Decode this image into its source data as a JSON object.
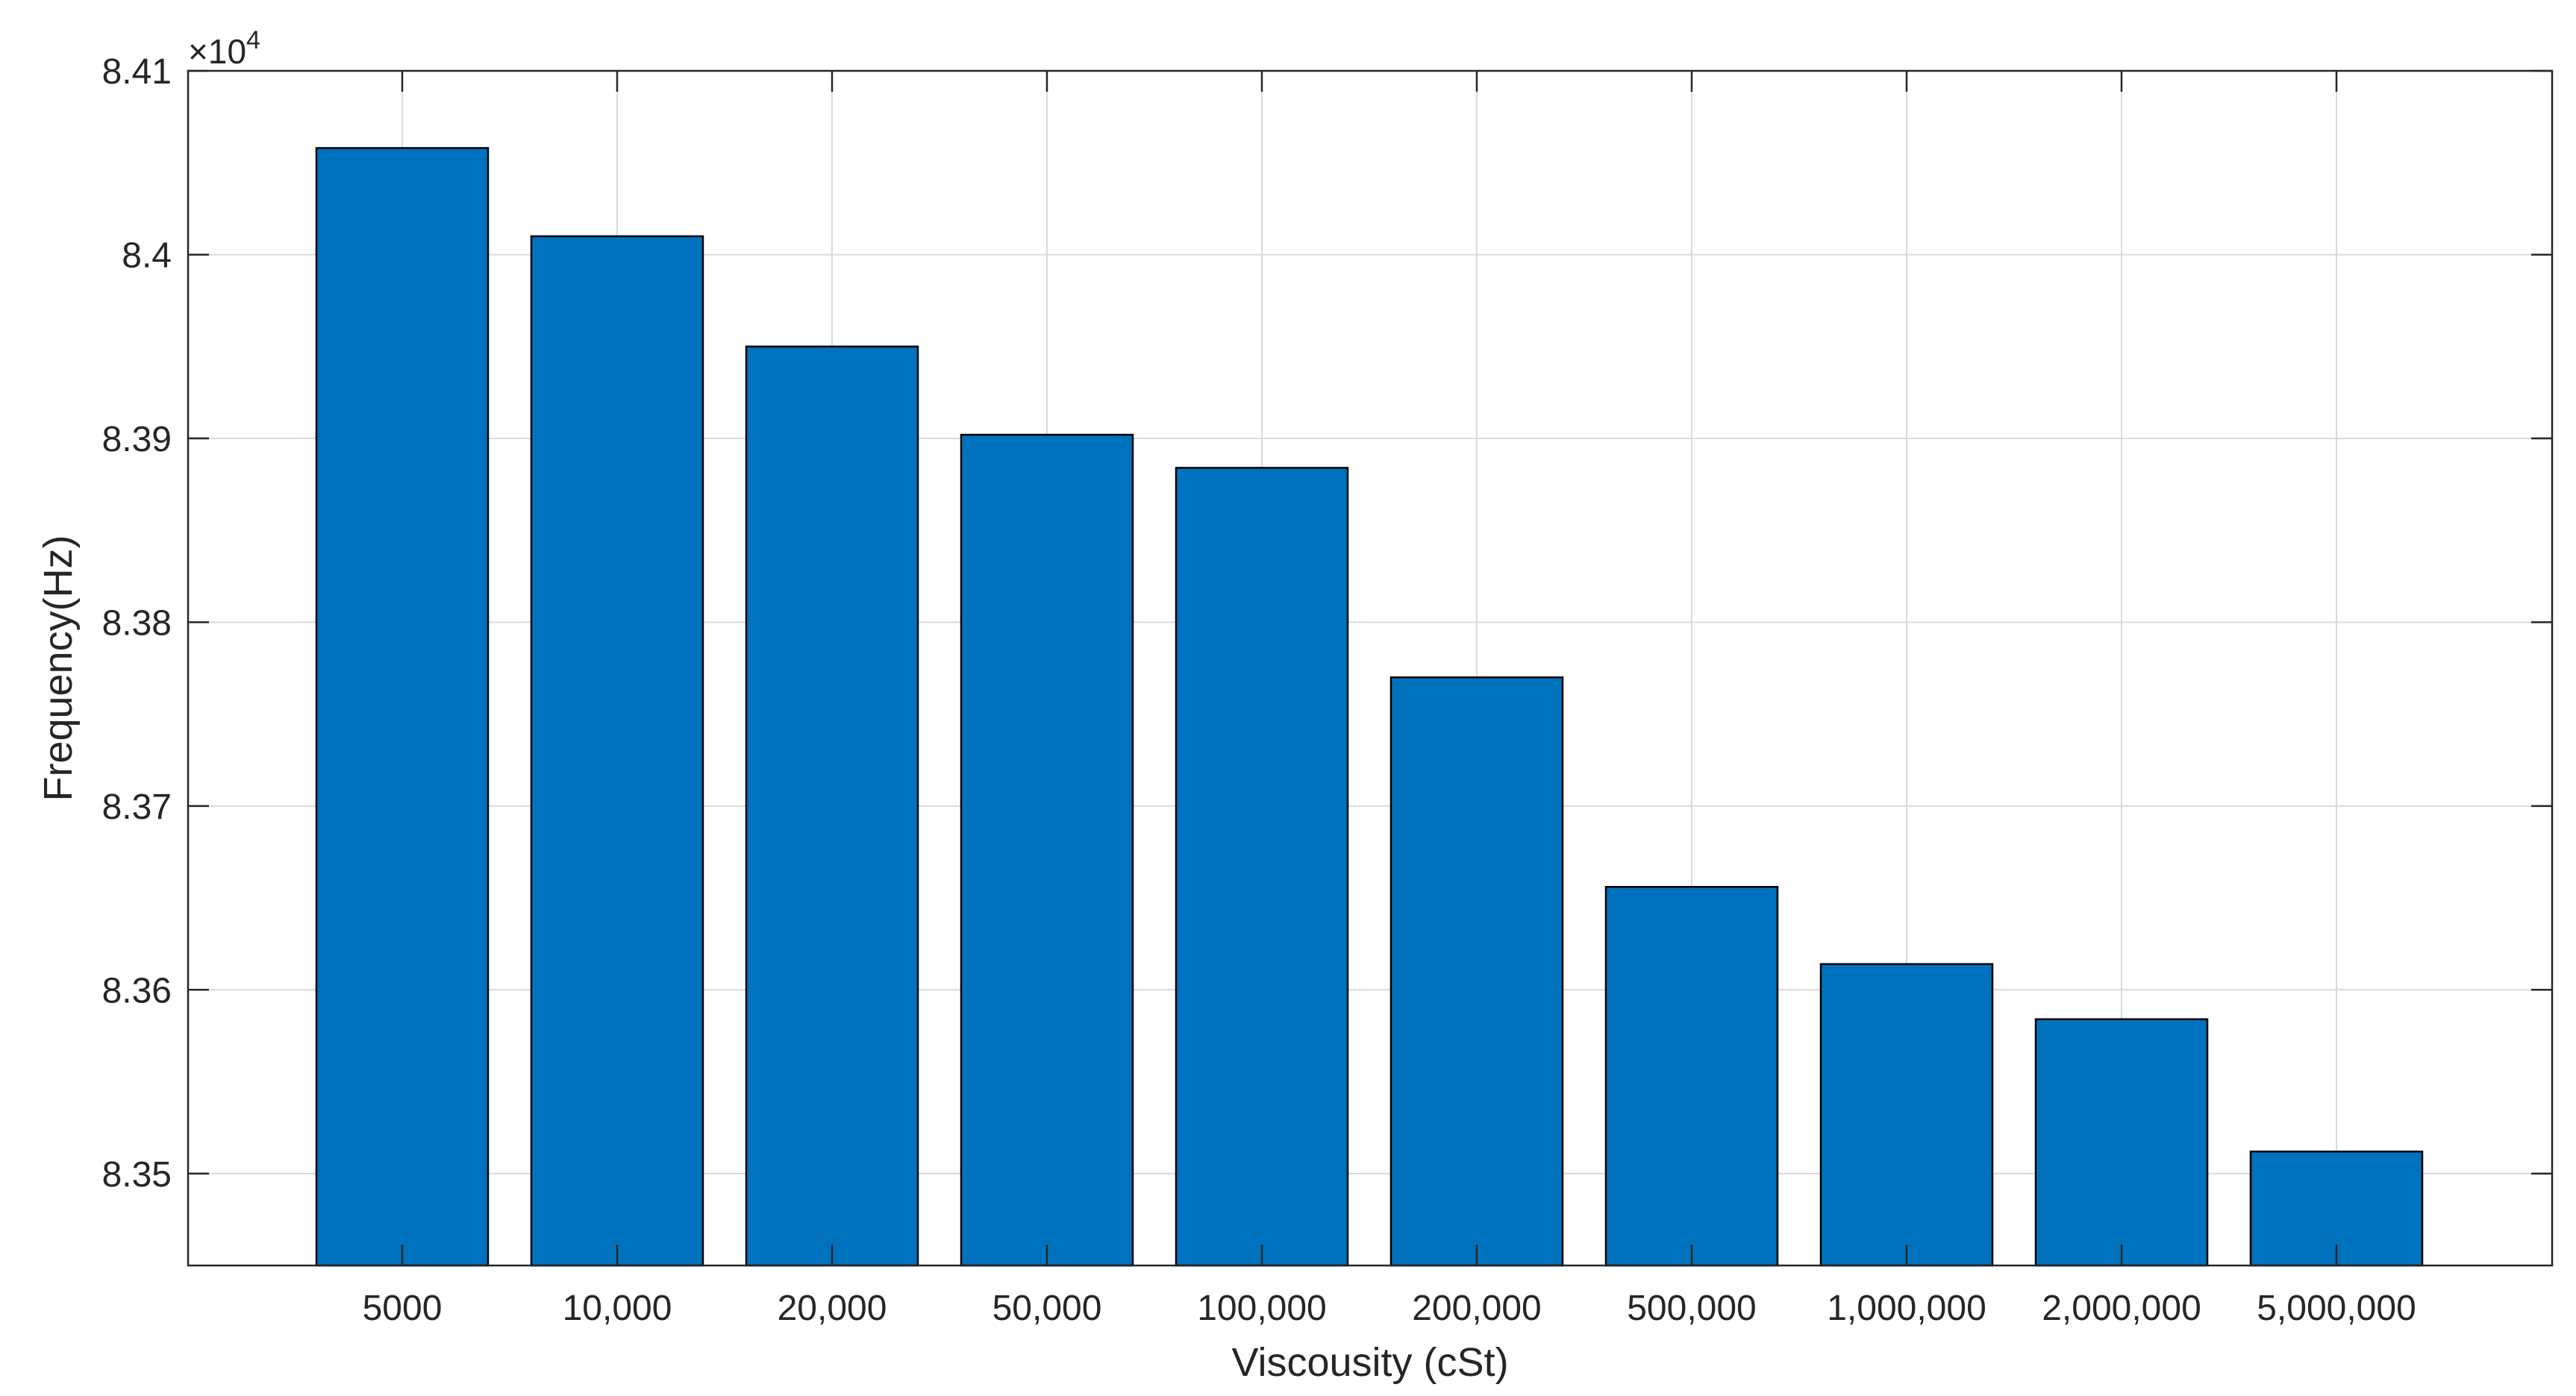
{
  "chart_data": {
    "type": "bar",
    "title": "",
    "xlabel": "Viscousity (cSt)",
    "ylabel": "Frequency(Hz)",
    "y_exponent_label": {
      "base": "×10",
      "exponent": "4"
    },
    "categories": [
      "5000",
      "10,000",
      "20,000",
      "50,000",
      "100,000",
      "200,000",
      "500,000",
      "1,000,000",
      "2,000,000",
      "5,000,000"
    ],
    "values": [
      84058,
      84010,
      83950,
      83902,
      83884,
      83770,
      83656,
      83614,
      83584,
      83512
    ],
    "ylim": [
      83450,
      84100
    ],
    "yticks": [
      83500,
      83600,
      83700,
      83800,
      83900,
      84000,
      84100
    ],
    "ytick_labels": [
      "8.35",
      "8.36",
      "8.37",
      "8.38",
      "8.39",
      "8.4",
      "8.41"
    ],
    "grid": true,
    "legend": "none",
    "bar_color": "#0072BD",
    "bar_edge_color": "#000000"
  }
}
